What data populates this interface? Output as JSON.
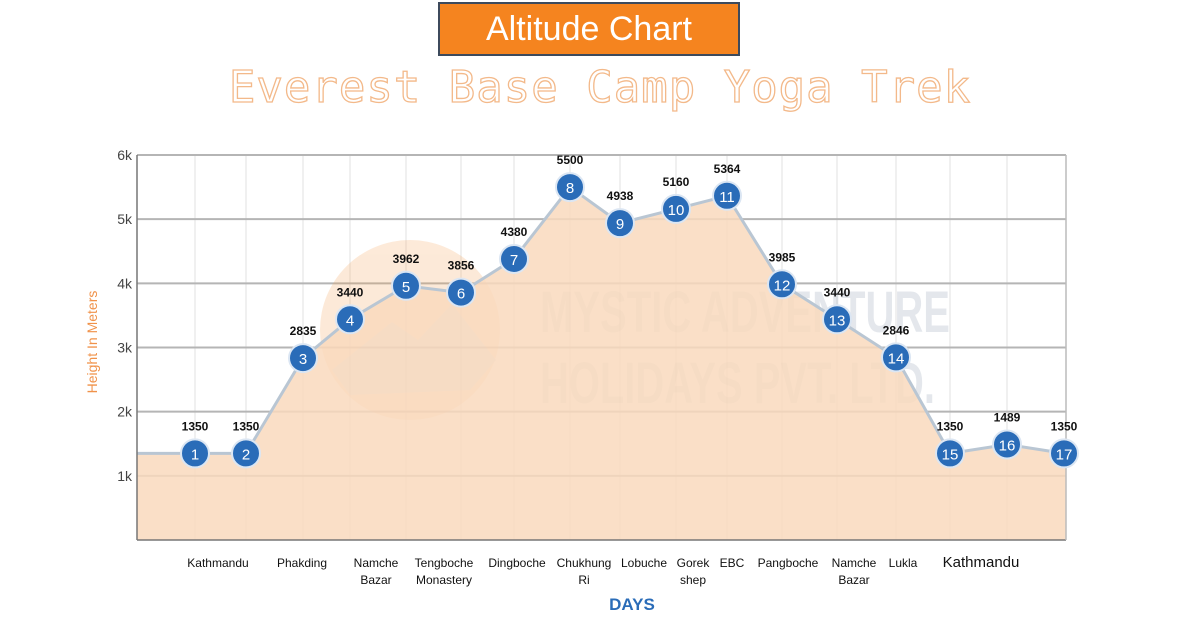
{
  "header": {
    "title": "Altitude Chart",
    "subtitle": "Everest Base Camp Yoga Trek"
  },
  "watermark": {
    "line1": "MYSTIC ADVENTURE",
    "line2": "HOLIDAYS PVT. LTD."
  },
  "colors": {
    "accent": "#f5841f",
    "area_fill": "#f9d9bd",
    "line": "#b9c6d3",
    "marker": "#2a6cb8",
    "grid": "#b5b5b5",
    "axis_label": "#f0924a",
    "days_label": "#2a6cb8"
  },
  "chart_data": {
    "type": "area",
    "title": "Altitude Chart",
    "subtitle": "Everest Base Camp Yoga Trek",
    "ylabel": "Height In Meters",
    "xlabel": "DAYS",
    "ylim": [
      0,
      6000
    ],
    "yticks": [
      1000,
      2000,
      3000,
      4000,
      5000,
      6000
    ],
    "ytick_labels": [
      "1k",
      "2k",
      "3k",
      "4k",
      "5k",
      "6k"
    ],
    "grid": true,
    "points": [
      {
        "day": "1",
        "altitude": 1350,
        "label": "1350"
      },
      {
        "day": "2",
        "altitude": 1350,
        "label": "1350"
      },
      {
        "day": "3",
        "altitude": 2835,
        "label": "2835"
      },
      {
        "day": "4",
        "altitude": 3440,
        "label": "3440"
      },
      {
        "day": "5",
        "altitude": 3962,
        "label": "3962"
      },
      {
        "day": "6",
        "altitude": 3856,
        "label": "3856"
      },
      {
        "day": "7",
        "altitude": 4380,
        "label": "4380"
      },
      {
        "day": "8",
        "altitude": 5500,
        "label": "5500"
      },
      {
        "day": "9",
        "altitude": 4938,
        "label": "4938"
      },
      {
        "day": "10",
        "altitude": 5160,
        "label": "5160"
      },
      {
        "day": "11",
        "altitude": 5364,
        "label": "5364"
      },
      {
        "day": "12",
        "altitude": 3985,
        "label": "3985"
      },
      {
        "day": "13",
        "altitude": 3440,
        "label": "3440"
      },
      {
        "day": "14",
        "altitude": 2846,
        "label": "2846"
      },
      {
        "day": "15",
        "altitude": 1350,
        "label": "1350"
      },
      {
        "day": "16",
        "altitude": 1489,
        "label": "1489"
      },
      {
        "day": "17",
        "altitude": 1350,
        "label": "1350"
      }
    ],
    "places": [
      {
        "lines": [
          "Kathmandu"
        ]
      },
      {
        "lines": [
          "Phakding"
        ]
      },
      {
        "lines": [
          "Namche",
          "Bazar"
        ]
      },
      {
        "lines": [
          "Tengboche",
          "Monastery"
        ]
      },
      {
        "lines": [
          "Dingboche"
        ]
      },
      {
        "lines": [
          "Chukhung",
          "Ri"
        ]
      },
      {
        "lines": [
          "Lobuche"
        ]
      },
      {
        "lines": [
          "Gorek",
          "shep"
        ]
      },
      {
        "lines": [
          "EBC"
        ]
      },
      {
        "lines": [
          "Pangboche"
        ]
      },
      {
        "lines": [
          "Namche",
          "Bazar"
        ]
      },
      {
        "lines": [
          "Lukla"
        ]
      },
      {
        "lines": [
          "Kathmandu"
        ]
      }
    ]
  }
}
